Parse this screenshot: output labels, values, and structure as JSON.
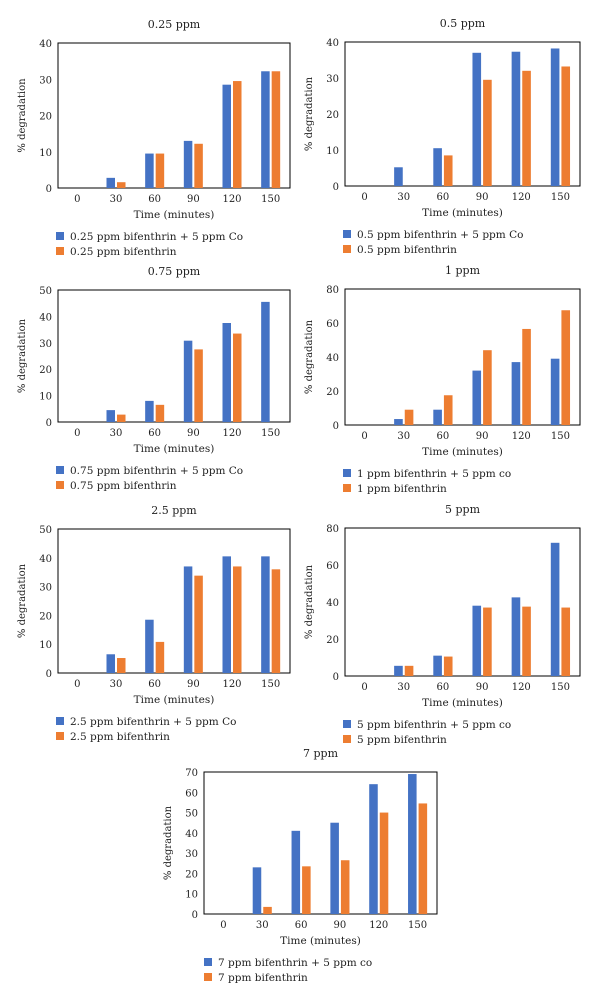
{
  "colors": {
    "series_co": "#4472C4",
    "series_plain": "#ED7D31"
  },
  "chart_data": [
    {
      "type": "bar",
      "title": "0.25 ppm",
      "xlabel": "Time (minutes)",
      "ylabel": "% degradation",
      "categories": [
        "0",
        "30",
        "60",
        "90",
        "120",
        "150"
      ],
      "ylim": [
        0,
        40
      ],
      "yticks": [
        0,
        10,
        20,
        30,
        40
      ],
      "grid": false,
      "legend": "bottom-left",
      "series": [
        {
          "name": "0.25 ppm bifenthrin + 5 ppm Co",
          "values": [
            0,
            2.8,
            9.5,
            13,
            28.5,
            32.2
          ]
        },
        {
          "name": "0.25 ppm bifenthrin",
          "values": [
            0,
            1.6,
            9.5,
            12.2,
            29.5,
            32.2
          ]
        }
      ]
    },
    {
      "type": "bar",
      "title": "0.5 ppm",
      "xlabel": "Time (minutes)",
      "ylabel": "% degradation",
      "categories": [
        "0",
        "30",
        "60",
        "90",
        "120",
        "150"
      ],
      "ylim": [
        0,
        40
      ],
      "yticks": [
        0,
        10,
        20,
        30,
        40
      ],
      "grid": false,
      "legend": "bottom-left",
      "series": [
        {
          "name": "0.5 ppm bifenthrin + 5 ppm Co",
          "values": [
            0,
            5.2,
            10.5,
            37,
            37.3,
            38.2
          ]
        },
        {
          "name": "0.5 ppm bifenthrin",
          "values": [
            0,
            0,
            8.5,
            29.5,
            32,
            33.2
          ]
        }
      ]
    },
    {
      "type": "bar",
      "title": "0.75 ppm",
      "xlabel": "Time (minutes)",
      "ylabel": "% degradation",
      "categories": [
        "0",
        "30",
        "60",
        "90",
        "120",
        "150"
      ],
      "ylim": [
        0,
        50
      ],
      "yticks": [
        0,
        10,
        20,
        30,
        40,
        50
      ],
      "grid": false,
      "legend": "bottom-left",
      "series": [
        {
          "name": "0.75 ppm bifenthrin + 5 ppm Co",
          "values": [
            0,
            4.5,
            8,
            30.8,
            37.5,
            45.5
          ]
        },
        {
          "name": "0.75 ppm bifenthrin",
          "values": [
            0,
            2.8,
            6.5,
            27.5,
            33.5,
            0
          ]
        }
      ]
    },
    {
      "type": "bar",
      "title": "1 ppm",
      "xlabel": "Time (minutes)",
      "ylabel": "% degradation",
      "categories": [
        "0",
        "30",
        "60",
        "90",
        "120",
        "150"
      ],
      "ylim": [
        0,
        80
      ],
      "yticks": [
        0,
        20,
        40,
        60,
        80
      ],
      "grid": false,
      "legend": "bottom-left",
      "series": [
        {
          "name": "1 ppm bifenthrin + 5 ppm co",
          "values": [
            0,
            3.5,
            9,
            32,
            37,
            39
          ]
        },
        {
          "name": "1 ppm bifenthrin",
          "values": [
            0,
            9,
            17.5,
            44,
            56.5,
            67.5
          ]
        }
      ]
    },
    {
      "type": "bar",
      "title": "2.5 ppm",
      "xlabel": "Time (minutes)",
      "ylabel": "% degradation",
      "categories": [
        "0",
        "30",
        "60",
        "90",
        "120",
        "150"
      ],
      "ylim": [
        0,
        50
      ],
      "yticks": [
        0,
        10,
        20,
        30,
        40,
        50
      ],
      "grid": false,
      "legend": "bottom-left",
      "series": [
        {
          "name": "2.5 ppm bifenthrin + 5 ppm Co",
          "values": [
            0,
            6.5,
            18.5,
            37,
            40.5,
            40.5
          ]
        },
        {
          "name": "2.5 ppm bifenthrin",
          "values": [
            0,
            5.2,
            10.8,
            33.8,
            37,
            36
          ]
        }
      ]
    },
    {
      "type": "bar",
      "title": "5 ppm",
      "xlabel": "Time (minutes)",
      "ylabel": "% degradation",
      "categories": [
        "0",
        "30",
        "60",
        "90",
        "120",
        "150"
      ],
      "ylim": [
        0,
        80
      ],
      "yticks": [
        0,
        20,
        40,
        60,
        80
      ],
      "grid": false,
      "legend": "bottom-left",
      "series": [
        {
          "name": "5 ppm bifenthrin + 5 ppm co",
          "values": [
            0,
            5.5,
            11,
            38,
            42.5,
            72
          ]
        },
        {
          "name": "5 ppm bifenthrin",
          "values": [
            0,
            5.5,
            10.5,
            37,
            37.5,
            37
          ]
        }
      ]
    },
    {
      "type": "bar",
      "title": "7 ppm",
      "xlabel": "Time (minutes)",
      "ylabel": "% degradation",
      "categories": [
        "0",
        "30",
        "60",
        "90",
        "120",
        "150"
      ],
      "ylim": [
        0,
        70
      ],
      "yticks": [
        0,
        10,
        20,
        30,
        40,
        50,
        60,
        70
      ],
      "grid": false,
      "legend": "bottom-left",
      "series": [
        {
          "name": "7 ppm bifenthrin + 5 ppm co",
          "values": [
            0,
            23,
            41,
            45,
            64,
            69
          ]
        },
        {
          "name": "7 ppm bifenthrin",
          "values": [
            0,
            3.5,
            23.5,
            26.5,
            50,
            54.5
          ]
        }
      ]
    }
  ]
}
